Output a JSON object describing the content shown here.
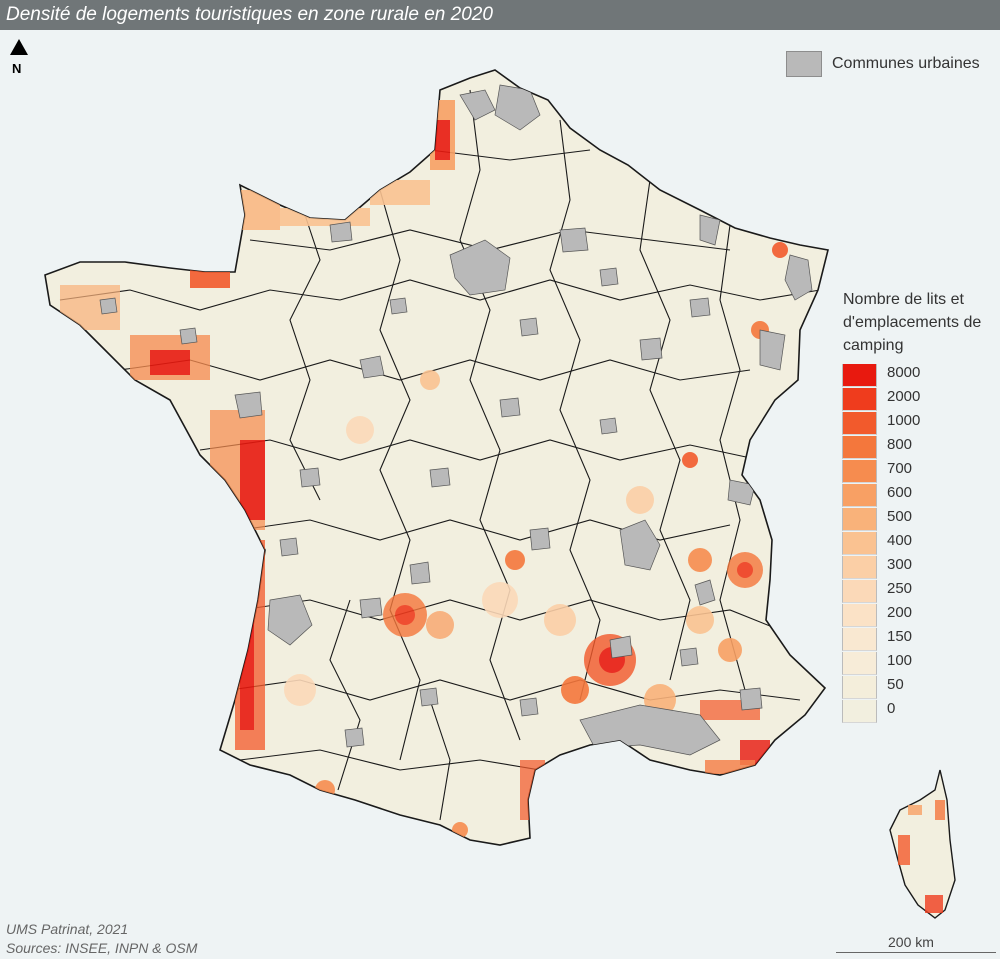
{
  "header": {
    "title": "Densité de logements touristiques en zone rurale en 2020"
  },
  "north_arrow": {
    "label": "N",
    "icon": "north-arrow-icon"
  },
  "urban_legend": {
    "label": "Communes urbaines",
    "color": "#b9b9b9"
  },
  "legend": {
    "title_lines": [
      "Nombre de lits et",
      "d'emplacements de",
      "camping"
    ],
    "classes": [
      {
        "label": "8000",
        "color": "#e8190f"
      },
      {
        "label": "2000",
        "color": "#ef3c1d"
      },
      {
        "label": "1000",
        "color": "#f25a2c"
      },
      {
        "label": "800",
        "color": "#f4773c"
      },
      {
        "label": "700",
        "color": "#f68c4f"
      },
      {
        "label": "600",
        "color": "#f8a064"
      },
      {
        "label": "500",
        "color": "#f9b27a"
      },
      {
        "label": "400",
        "color": "#fac291"
      },
      {
        "label": "300",
        "color": "#fbcfa6"
      },
      {
        "label": "250",
        "color": "#fbd9b8"
      },
      {
        "label": "200",
        "color": "#fbe2c6"
      },
      {
        "label": "150",
        "color": "#f9e8d1"
      },
      {
        "label": "100",
        "color": "#f7ecd8"
      },
      {
        "label": "50",
        "color": "#f4eedb"
      },
      {
        "label": "0",
        "color": "#f2efdf"
      }
    ]
  },
  "colors": {
    "background": "#eef3f4",
    "land": "#f2efdf",
    "urban": "#b9b9b9",
    "border": "#1a1a1a",
    "title_bar": "#707678"
  },
  "footer": {
    "credit": "UMS Patrinat, 2021",
    "sources": "Sources: INSEE, INPN & OSM"
  },
  "scale": {
    "label": "200 km"
  }
}
